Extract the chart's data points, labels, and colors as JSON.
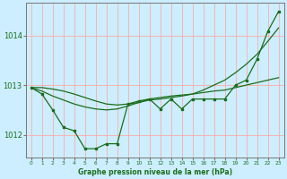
{
  "xlabel": "Graphe pression niveau de la mer (hPa)",
  "ylim": [
    1011.55,
    1014.65
  ],
  "yticks": [
    1012,
    1013,
    1014
  ],
  "xlim": [
    -0.5,
    23.5
  ],
  "background_color": "#cceeff",
  "grid_color": "#ffaaaa",
  "line_color": "#1a6e1a",
  "detailed_series": [
    1012.95,
    1012.82,
    1012.5,
    1012.15,
    1012.08,
    1011.72,
    1011.72,
    1011.82,
    1011.82,
    1012.62,
    1012.68,
    1012.72,
    1012.52,
    1012.72,
    1012.52,
    1012.72,
    1012.72,
    1012.72,
    1012.72,
    1013.0,
    1013.1,
    1013.52,
    1014.08,
    1014.48
  ],
  "smooth_flat": [
    1012.95,
    1012.88,
    1012.78,
    1012.7,
    1012.62,
    1012.56,
    1012.52,
    1012.5,
    1012.52,
    1012.58,
    1012.65,
    1012.72,
    1012.75,
    1012.78,
    1012.8,
    1012.82,
    1012.85,
    1012.88,
    1012.9,
    1012.95,
    1013.0,
    1013.05,
    1013.1,
    1013.15
  ],
  "smooth_rising": [
    1012.95,
    1012.95,
    1012.92,
    1012.88,
    1012.82,
    1012.75,
    1012.68,
    1012.62,
    1012.6,
    1012.62,
    1012.65,
    1012.7,
    1012.72,
    1012.75,
    1012.78,
    1012.82,
    1012.9,
    1013.0,
    1013.1,
    1013.25,
    1013.42,
    1013.62,
    1013.88,
    1014.15
  ],
  "figwidth": 3.2,
  "figheight": 2.0,
  "dpi": 100
}
